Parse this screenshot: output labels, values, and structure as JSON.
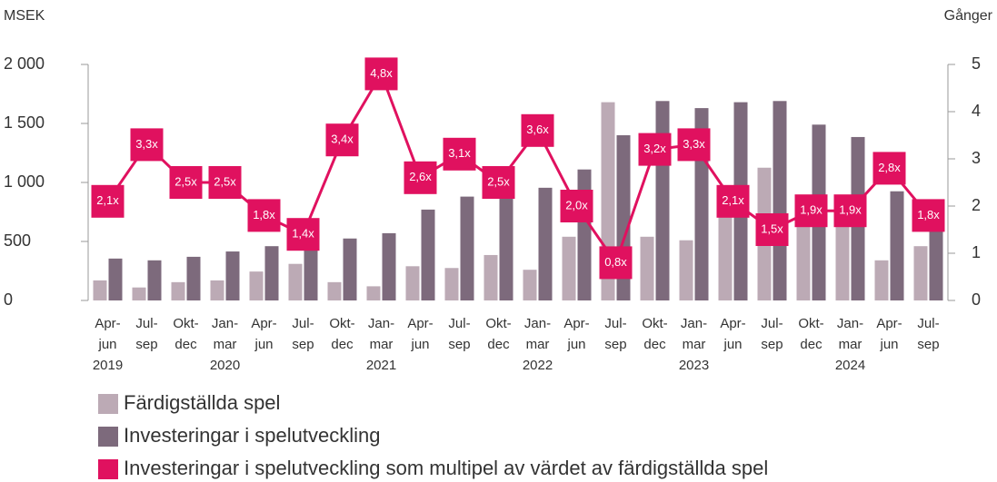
{
  "chart_data": {
    "type": "bar_line",
    "y_label": "MSEK",
    "y2_label": "Gånger",
    "categories": [
      [
        "Apr-",
        "jun"
      ],
      [
        "Jul-",
        "sep"
      ],
      [
        "Okt-",
        "dec"
      ],
      [
        "Jan-",
        "mar"
      ],
      [
        "Apr-",
        "jun"
      ],
      [
        "Jul-",
        "sep"
      ],
      [
        "Okt-",
        "dec"
      ],
      [
        "Jan-",
        "mar"
      ],
      [
        "Apr-",
        "jun"
      ],
      [
        "Jul-",
        "sep"
      ],
      [
        "Okt-",
        "dec"
      ],
      [
        "Jan-",
        "mar"
      ],
      [
        "Apr-",
        "jun"
      ],
      [
        "Jul-",
        "sep"
      ],
      [
        "Okt-",
        "dec"
      ],
      [
        "Jan-",
        "mar"
      ],
      [
        "Apr-",
        "jun"
      ],
      [
        "Jul-",
        "sep"
      ],
      [
        "Okt-",
        "dec"
      ],
      [
        "Jan-",
        "mar"
      ],
      [
        "Apr-",
        "jun"
      ],
      [
        "Jul-",
        "sep"
      ]
    ],
    "years": [
      "2019",
      null,
      null,
      "2020",
      null,
      null,
      null,
      "2021",
      null,
      null,
      null,
      "2022",
      null,
      null,
      null,
      "2023",
      null,
      null,
      null,
      "2024",
      null,
      null
    ],
    "series": [
      {
        "name": "Färdigställda spel",
        "type": "bar",
        "color": "#bcaab5",
        "values": [
          170,
          110,
          155,
          170,
          245,
          310,
          155,
          120,
          290,
          275,
          385,
          260,
          540,
          1680,
          540,
          510,
          800,
          1125,
          750,
          700,
          340,
          460
        ]
      },
      {
        "name": "Investeringar i spelutveckling",
        "type": "bar",
        "color": "#7d6a7c",
        "values": [
          355,
          340,
          370,
          415,
          460,
          500,
          525,
          570,
          770,
          880,
          930,
          955,
          1110,
          1400,
          1690,
          1630,
          1680,
          1690,
          1490,
          1385,
          925,
          700
        ]
      },
      {
        "name": "Investeringar i spelutveckling som multipel av värdet av färdigställda spel",
        "type": "line",
        "axis": "y2",
        "color": "#e0115f",
        "values": [
          2.1,
          3.3,
          2.5,
          2.5,
          1.8,
          1.4,
          3.4,
          4.8,
          2.6,
          3.1,
          2.5,
          3.6,
          2.0,
          0.8,
          3.2,
          3.3,
          2.1,
          1.5,
          1.9,
          1.9,
          2.8,
          1.8
        ],
        "value_labels": [
          "2,1x",
          "3,3x",
          "2,5x",
          "2,5x",
          "1,8x",
          "1,4x",
          "3,4x",
          "4,8x",
          "2,6x",
          "3,1x",
          "2,5x",
          "3,6x",
          "2,0x",
          "0,8x",
          "3,2x",
          "3,3x",
          "2,1x",
          "1,5x",
          "1,9x",
          "1,9x",
          "2,8x",
          "1,8x"
        ]
      }
    ],
    "ylim": [
      0,
      2000
    ],
    "yticks": [
      0,
      500,
      {
        "value": 1000,
        "label": "1 000"
      },
      {
        "value": 1500,
        "label": "1 500"
      },
      {
        "value": 2000,
        "label": "2 000"
      }
    ],
    "y2lim": [
      0,
      5
    ],
    "y2ticks": [
      0,
      1,
      2,
      3,
      4,
      5
    ]
  }
}
